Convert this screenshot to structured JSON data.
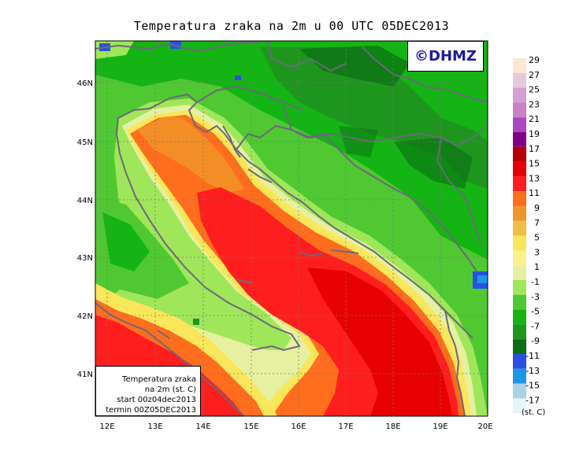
{
  "title": "Temperatura zraka na 2m u 00 UTC 05DEC2013",
  "copyright": "©DHMZ",
  "info_box": {
    "line1": "Temperatura zraka",
    "line2": "na 2m (st. C)",
    "line3": "start 00z04dec2013",
    "line4": "termin 00Z05DEC2013"
  },
  "lat_labels": [
    "46N",
    "45N",
    "44N",
    "43N",
    "42N",
    "41N"
  ],
  "lon_labels": [
    "12E",
    "13E",
    "14E",
    "15E",
    "16E",
    "17E",
    "18E",
    "19E",
    "20E"
  ],
  "legend": {
    "unit": "(st. C)",
    "labels": [
      "29",
      "27",
      "25",
      "23",
      "21",
      "19",
      "17",
      "15",
      "13",
      "11",
      "9",
      "7",
      "5",
      "3",
      "1",
      "-1",
      "-3",
      "-5",
      "-7",
      "-9",
      "-11",
      "-13",
      "-15",
      "-17"
    ],
    "colors": [
      "#fae6d2",
      "#e6c8dc",
      "#d2a0d2",
      "#c882c8",
      "#aa46be",
      "#820082",
      "#b40000",
      "#e60000",
      "#ff1e1e",
      "#ff6e1e",
      "#f09628",
      "#f0be46",
      "#fae65a",
      "#faf08c",
      "#e6f0a0",
      "#a0e65a",
      "#50c832",
      "#14b414",
      "#1e961e",
      "#0a6e14",
      "#2850e6",
      "#1e96e6",
      "#aad2e6",
      "#e6f5fa"
    ]
  },
  "colors": {
    "border": "#6a6a7a",
    "grid": "#777777",
    "sea_warm": "#ff1e1e",
    "land_green": "#50c832"
  }
}
